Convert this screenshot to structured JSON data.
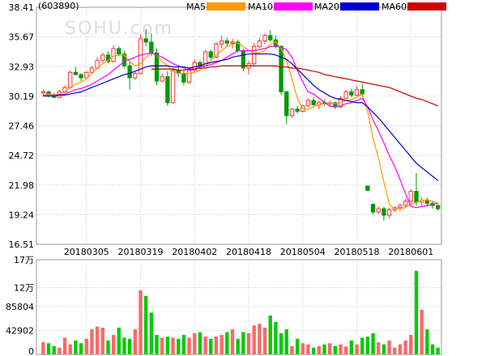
{
  "stock_code": "(603890)",
  "watermark": "SOHU.com",
  "legend": [
    {
      "label": "MA5",
      "color": "#ff9900"
    },
    {
      "label": "MA10",
      "color": "#ff00ff"
    },
    {
      "label": "MA20",
      "color": "#0000cc"
    },
    {
      "label": "MA60",
      "color": "#cc0000"
    }
  ],
  "colors": {
    "up": "#ff3333",
    "down": "#009900",
    "up_volume": "#ff6666",
    "down_volume": "#00cc00",
    "grid": "#cccccc"
  },
  "chart_data": {
    "type": "candlestick",
    "price_axis": {
      "ylim": [
        16.51,
        38.41
      ],
      "tick_labels": [
        "38.41",
        "35.67",
        "32.93",
        "30.19",
        "27.46",
        "24.72",
        "21.98",
        "19.24",
        "16.51"
      ]
    },
    "volume_axis": {
      "ylim": [
        0,
        170000
      ],
      "ticks": [
        170000,
        120000,
        85804,
        42902,
        0
      ],
      "tick_labels": [
        "17万",
        "12万",
        "85804",
        "42902",
        "0"
      ]
    },
    "date_labels": [
      {
        "label": "20180305",
        "index": 8
      },
      {
        "label": "20180319",
        "index": 18
      },
      {
        "label": "20180402",
        "index": 28
      },
      {
        "label": "20180418",
        "index": 38
      },
      {
        "label": "20180504",
        "index": 48
      },
      {
        "label": "20180518",
        "index": 58
      },
      {
        "label": "20180601",
        "index": 68
      }
    ],
    "ohlc": [
      [
        30.5,
        30.8,
        30.2,
        30.6
      ],
      [
        30.6,
        30.7,
        30.1,
        30.3
      ],
      [
        30.3,
        30.5,
        30.0,
        30.1
      ],
      [
        30.1,
        30.8,
        30.0,
        30.6
      ],
      [
        30.6,
        31.2,
        30.5,
        31.0
      ],
      [
        31.0,
        32.6,
        30.9,
        32.4
      ],
      [
        32.4,
        32.9,
        32.1,
        32.2
      ],
      [
        32.2,
        32.3,
        31.6,
        31.9
      ],
      [
        31.9,
        32.5,
        31.8,
        32.4
      ],
      [
        32.4,
        33.0,
        32.3,
        32.8
      ],
      [
        32.8,
        33.8,
        32.7,
        33.5
      ],
      [
        33.5,
        34.2,
        33.3,
        34.0
      ],
      [
        34.0,
        34.3,
        33.2,
        33.4
      ],
      [
        33.4,
        34.9,
        33.3,
        34.6
      ],
      [
        34.6,
        34.8,
        33.9,
        34.1
      ],
      [
        34.1,
        34.4,
        32.8,
        33.0
      ],
      [
        33.0,
        33.4,
        30.8,
        31.9
      ],
      [
        31.9,
        32.5,
        31.7,
        32.3
      ],
      [
        32.3,
        35.9,
        32.2,
        35.5
      ],
      [
        35.5,
        36.4,
        34.8,
        35.2
      ],
      [
        35.2,
        36.0,
        33.9,
        34.2
      ],
      [
        34.2,
        34.6,
        31.2,
        31.6
      ],
      [
        31.6,
        32.3,
        31.5,
        32.0
      ],
      [
        32.0,
        32.5,
        29.3,
        29.6
      ],
      [
        29.6,
        32.8,
        29.5,
        32.6
      ],
      [
        32.6,
        33.1,
        32.0,
        32.3
      ],
      [
        32.3,
        32.6,
        31.2,
        31.5
      ],
      [
        31.5,
        32.8,
        31.3,
        32.6
      ],
      [
        32.6,
        33.6,
        32.4,
        33.3
      ],
      [
        33.3,
        33.5,
        32.7,
        33.0
      ],
      [
        33.0,
        34.5,
        32.9,
        34.3
      ],
      [
        34.3,
        34.5,
        33.6,
        33.8
      ],
      [
        33.8,
        35.2,
        33.7,
        35.0
      ],
      [
        35.0,
        35.8,
        34.6,
        35.3
      ],
      [
        35.3,
        35.6,
        34.8,
        35.1
      ],
      [
        35.1,
        35.5,
        34.6,
        35.2
      ],
      [
        35.2,
        35.4,
        34.2,
        34.4
      ],
      [
        34.4,
        34.6,
        32.5,
        32.8
      ],
      [
        32.8,
        33.5,
        32.2,
        33.2
      ],
      [
        33.2,
        35.1,
        33.0,
        34.8
      ],
      [
        34.8,
        35.6,
        34.6,
        35.3
      ],
      [
        35.3,
        36.0,
        35.0,
        35.8
      ],
      [
        35.8,
        36.3,
        35.2,
        35.4
      ],
      [
        35.4,
        35.8,
        34.6,
        34.8
      ],
      [
        34.8,
        34.9,
        30.3,
        30.6
      ],
      [
        30.6,
        30.7,
        27.6,
        28.4
      ],
      [
        28.4,
        29.1,
        28.2,
        29.0
      ],
      [
        29.0,
        29.3,
        28.6,
        28.8
      ],
      [
        28.8,
        29.4,
        28.7,
        29.3
      ],
      [
        29.3,
        30.0,
        29.2,
        29.8
      ],
      [
        29.8,
        30.1,
        29.3,
        29.4
      ],
      [
        29.4,
        29.8,
        29.0,
        29.6
      ],
      [
        29.6,
        29.9,
        29.3,
        29.5
      ],
      [
        29.5,
        29.8,
        29.2,
        29.6
      ],
      [
        29.6,
        29.7,
        29.0,
        29.2
      ],
      [
        29.2,
        30.2,
        29.1,
        30.0
      ],
      [
        30.0,
        30.8,
        29.9,
        30.6
      ],
      [
        30.6,
        30.9,
        30.1,
        30.3
      ],
      [
        30.3,
        31.1,
        30.2,
        30.8
      ],
      [
        30.8,
        31.3,
        30.2,
        30.4
      ],
      [
        21.9,
        21.9,
        21.4,
        21.5
      ],
      [
        20.2,
        20.3,
        19.3,
        19.5
      ],
      [
        19.5,
        20.0,
        19.3,
        19.8
      ],
      [
        19.8,
        20.0,
        18.7,
        19.2
      ],
      [
        19.2,
        19.9,
        18.9,
        19.7
      ],
      [
        19.7,
        20.0,
        19.5,
        19.9
      ],
      [
        19.9,
        20.3,
        19.6,
        20.1
      ],
      [
        20.1,
        20.7,
        19.9,
        20.5
      ],
      [
        20.5,
        21.6,
        20.3,
        21.4
      ],
      [
        21.4,
        23.1,
        20.1,
        20.4
      ],
      [
        20.4,
        20.9,
        20.1,
        20.6
      ],
      [
        20.6,
        20.8,
        20.0,
        20.3
      ],
      [
        20.3,
        20.5,
        19.8,
        20.1
      ],
      [
        20.1,
        20.2,
        19.6,
        19.8
      ]
    ],
    "volume": [
      22000,
      20000,
      15000,
      12000,
      30000,
      18000,
      25000,
      20000,
      28000,
      45000,
      50000,
      48000,
      25000,
      35000,
      48000,
      30000,
      28000,
      45000,
      115000,
      105000,
      75000,
      35000,
      30000,
      32000,
      30000,
      28000,
      35000,
      30000,
      38000,
      40000,
      32000,
      28000,
      32000,
      35000,
      40000,
      45000,
      28000,
      40000,
      38000,
      52000,
      55000,
      48000,
      70000,
      58000,
      38000,
      45000,
      15000,
      28000,
      20000,
      18000,
      12000,
      15000,
      18000,
      20000,
      15000,
      18000,
      14000,
      25000,
      18000,
      30000,
      32000,
      38000,
      22000,
      18000,
      25000,
      12000,
      18000,
      25000,
      35000,
      150000,
      80000,
      45000,
      18000,
      12000
    ],
    "ma5": [
      30.5,
      30.4,
      30.3,
      30.4,
      30.6,
      31.0,
      31.3,
      31.5,
      31.8,
      32.3,
      32.8,
      33.2,
      33.5,
      33.9,
      34.0,
      34.0,
      33.4,
      33.0,
      33.2,
      33.8,
      34.2,
      34.0,
      33.4,
      33.0,
      32.5,
      32.3,
      32.3,
      32.3,
      32.4,
      32.6,
      33.0,
      33.5,
      34.0,
      34.4,
      34.8,
      35.0,
      35.1,
      34.8,
      34.4,
      34.2,
      34.2,
      34.4,
      35.0,
      35.2,
      34.6,
      33.5,
      31.8,
      30.0,
      29.0,
      29.0,
      29.2,
      29.4,
      29.5,
      29.6,
      29.5,
      29.6,
      29.8,
      29.9,
      30.1,
      30.4,
      28.8,
      26.3,
      24.5,
      22.3,
      20.2,
      19.8,
      19.8,
      19.9,
      20.2,
      20.4,
      20.6,
      20.6,
      20.5,
      20.3
    ],
    "ma10": [
      30.3,
      30.3,
      30.3,
      30.3,
      30.4,
      30.6,
      30.8,
      30.9,
      31.1,
      31.3,
      31.6,
      31.9,
      32.2,
      32.6,
      33.0,
      33.4,
      33.6,
      33.8,
      34.0,
      34.1,
      34.2,
      34.0,
      33.8,
      33.5,
      33.2,
      33.0,
      32.8,
      32.6,
      32.7,
      32.9,
      33.0,
      33.1,
      33.3,
      33.5,
      33.8,
      34.1,
      34.4,
      34.4,
      34.4,
      34.4,
      34.5,
      34.6,
      34.8,
      34.8,
      34.7,
      34.5,
      33.8,
      32.6,
      31.5,
      30.6,
      30.4,
      30.0,
      29.6,
      29.3,
      29.2,
      29.3,
      29.5,
      29.6,
      29.8,
      30.0,
      29.2,
      28.0,
      27.0,
      25.9,
      24.7,
      23.7,
      22.5,
      21.2,
      20.0,
      19.9,
      20.0,
      20.1,
      20.2,
      20.3
    ],
    "ma20": [
      30.2,
      30.2,
      30.2,
      30.3,
      30.3,
      30.4,
      30.5,
      30.6,
      30.8,
      31.0,
      31.2,
      31.4,
      31.6,
      31.8,
      32.0,
      32.2,
      32.3,
      32.5,
      32.7,
      32.9,
      33.0,
      33.0,
      33.0,
      33.0,
      32.9,
      32.9,
      32.9,
      32.8,
      32.9,
      33.0,
      33.2,
      33.3,
      33.4,
      33.5,
      33.6,
      33.8,
      33.9,
      34.0,
      34.1,
      34.1,
      34.1,
      34.1,
      34.1,
      34.0,
      33.8,
      33.6,
      33.2,
      32.7,
      32.2,
      31.7,
      31.2,
      30.8,
      30.5,
      30.2,
      30.0,
      29.9,
      29.8,
      29.7,
      29.6,
      29.6,
      29.2,
      28.7,
      28.2,
      27.6,
      27.0,
      26.4,
      25.8,
      25.2,
      24.6,
      24.0,
      23.6,
      23.2,
      22.8,
      22.4
    ],
    "ma60": [
      null,
      null,
      null,
      null,
      null,
      null,
      null,
      null,
      null,
      null,
      null,
      null,
      null,
      null,
      null,
      null,
      null,
      null,
      null,
      null,
      32.7,
      32.7,
      32.7,
      32.7,
      32.7,
      32.6,
      32.6,
      32.7,
      32.7,
      32.8,
      32.8,
      32.9,
      32.9,
      33.0,
      33.0,
      33.0,
      33.0,
      33.0,
      33.0,
      33.0,
      33.0,
      33.0,
      33.0,
      33.0,
      32.9,
      32.9,
      32.8,
      32.8,
      32.7,
      32.6,
      32.5,
      32.4,
      32.2,
      32.1,
      32.0,
      31.9,
      31.8,
      31.7,
      31.6,
      31.5,
      31.4,
      31.3,
      31.2,
      31.1,
      31.0,
      30.8,
      30.6,
      30.4,
      30.2,
      30.0,
      29.9,
      29.7,
      29.5,
      29.3
    ]
  }
}
